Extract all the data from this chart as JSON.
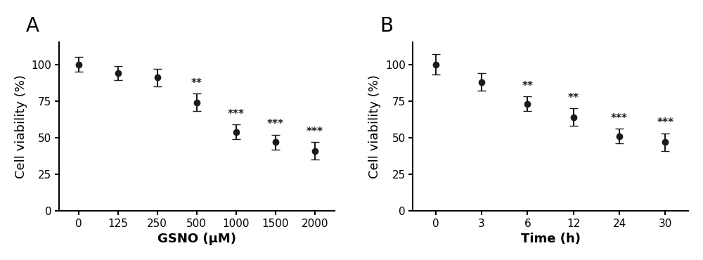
{
  "panel_A": {
    "label": "A",
    "x_labels": [
      "0",
      "125",
      "250",
      "500",
      "1000",
      "1500",
      "2000"
    ],
    "y": [
      100,
      94,
      91,
      74,
      54,
      47,
      41
    ],
    "yerr": [
      5,
      5,
      6,
      6,
      5,
      5,
      6
    ],
    "xlabel": "GSNO (μM)",
    "ylabel": "Cell viability (%)",
    "yticks": [
      0,
      25,
      50,
      75,
      100
    ],
    "ylim": [
      0,
      115
    ],
    "significance": {
      "3": "**",
      "4": "***",
      "5": "***",
      "6": "***"
    }
  },
  "panel_B": {
    "label": "B",
    "x_labels": [
      "0",
      "3",
      "6",
      "12",
      "24",
      "30"
    ],
    "y": [
      100,
      88,
      73,
      64,
      51,
      47
    ],
    "yerr": [
      7,
      6,
      5,
      6,
      5,
      6
    ],
    "xlabel": "Time (h)",
    "ylabel": "Cell viability (%)",
    "yticks": [
      0,
      25,
      50,
      75,
      100
    ],
    "ylim": [
      0,
      115
    ],
    "significance": {
      "2": "**",
      "3": "**",
      "4": "***",
      "5": "***"
    }
  },
  "line_color": "#1a1a1a",
  "marker": "o",
  "markersize": 6,
  "linewidth": 1.8,
  "capsize": 4,
  "elinewidth": 1.5,
  "sig_fontsize": 11,
  "label_fontsize": 13,
  "tick_fontsize": 11,
  "panel_label_fontsize": 20,
  "background_color": "#ffffff"
}
